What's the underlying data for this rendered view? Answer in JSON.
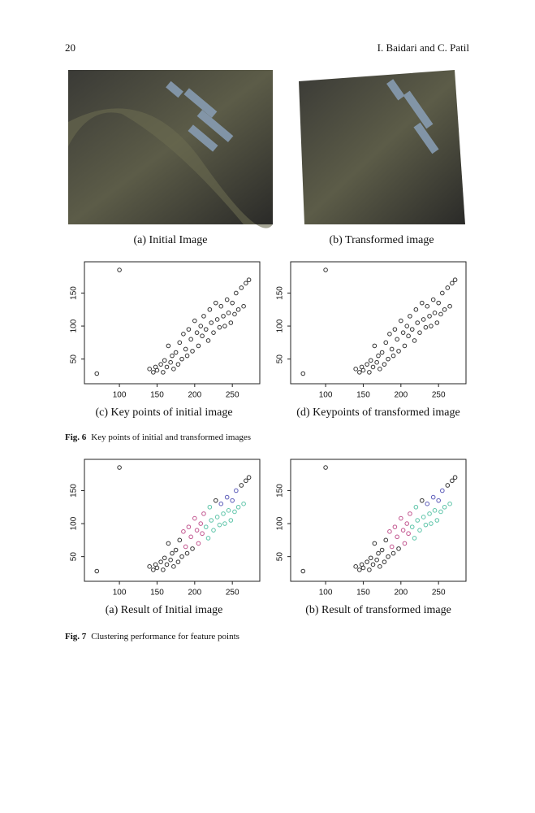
{
  "header": {
    "page_number": "20",
    "authors": "I. Baidari and C. Patil"
  },
  "figure6": {
    "images": [
      {
        "caption": "(a) Initial Image"
      },
      {
        "caption": "(b) Transformed image"
      }
    ],
    "label": "Fig. 6",
    "caption": "Key points of initial and transformed images"
  },
  "figure7": {
    "label": "Fig. 7",
    "caption": "Clustering performance for feature points"
  },
  "chart_data": [
    {
      "type": "scatter",
      "caption": "(c) Key points of initial image",
      "xlim": [
        60,
        280
      ],
      "ylim": [
        20,
        190
      ],
      "xticks": [
        100,
        150,
        200,
        250
      ],
      "yticks": [
        50,
        100,
        150
      ],
      "series": [
        {
          "color": "#333333",
          "x": [
            70,
            100,
            140,
            145,
            148,
            150,
            155,
            158,
            160,
            163,
            165,
            168,
            170,
            172,
            175,
            178,
            180,
            183,
            185,
            188,
            190,
            192,
            195,
            197,
            200,
            203,
            205,
            208,
            210,
            212,
            215,
            218,
            220,
            222,
            225,
            228,
            230,
            233,
            235,
            238,
            240,
            243,
            245,
            248,
            250,
            253,
            255,
            258,
            262,
            265,
            268,
            272
          ],
          "values": [
            28,
            185,
            35,
            30,
            38,
            33,
            42,
            30,
            48,
            38,
            70,
            45,
            55,
            35,
            60,
            42,
            75,
            50,
            88,
            65,
            55,
            95,
            80,
            62,
            108,
            90,
            70,
            100,
            85,
            115,
            95,
            78,
            125,
            105,
            90,
            135,
            110,
            98,
            130,
            115,
            100,
            140,
            120,
            105,
            135,
            118,
            150,
            125,
            158,
            130,
            165,
            170
          ]
        }
      ]
    },
    {
      "type": "scatter",
      "caption": "(d) Keypoints of transformed image",
      "xlim": [
        60,
        280
      ],
      "ylim": [
        20,
        190
      ],
      "xticks": [
        100,
        150,
        200,
        250
      ],
      "yticks": [
        50,
        100,
        150
      ],
      "series": [
        {
          "color": "#333333",
          "x": [
            70,
            100,
            140,
            145,
            148,
            150,
            155,
            158,
            160,
            163,
            165,
            168,
            170,
            172,
            175,
            178,
            180,
            183,
            185,
            188,
            190,
            192,
            195,
            197,
            200,
            203,
            205,
            208,
            210,
            212,
            215,
            218,
            220,
            222,
            225,
            228,
            230,
            233,
            235,
            238,
            240,
            243,
            245,
            248,
            250,
            253,
            255,
            258,
            262,
            265,
            268,
            272
          ],
          "values": [
            28,
            185,
            35,
            30,
            38,
            33,
            42,
            30,
            48,
            38,
            70,
            45,
            55,
            35,
            60,
            42,
            75,
            50,
            88,
            65,
            55,
            95,
            80,
            62,
            108,
            90,
            70,
            100,
            85,
            115,
            95,
            78,
            125,
            105,
            90,
            135,
            110,
            98,
            130,
            115,
            100,
            140,
            120,
            105,
            135,
            118,
            150,
            125,
            158,
            130,
            165,
            170
          ]
        }
      ]
    },
    {
      "type": "scatter",
      "caption": "(a) Result of Initial image",
      "xlim": [
        60,
        280
      ],
      "ylim": [
        20,
        190
      ],
      "xticks": [
        100,
        150,
        200,
        250
      ],
      "yticks": [
        50,
        100,
        150
      ],
      "series": [
        {
          "color": "#333333",
          "x": [
            70,
            100,
            140,
            145,
            148,
            150,
            155,
            158,
            160,
            163,
            165,
            168,
            170,
            172,
            175,
            178,
            180,
            183,
            190,
            197,
            228,
            262,
            268,
            272
          ],
          "values": [
            28,
            185,
            35,
            30,
            38,
            33,
            42,
            30,
            48,
            38,
            70,
            45,
            55,
            35,
            60,
            42,
            75,
            50,
            55,
            62,
            135,
            158,
            165,
            170
          ]
        },
        {
          "color": "#c2558f",
          "x": [
            185,
            188,
            192,
            195,
            200,
            203,
            205,
            208,
            210,
            212
          ],
          "values": [
            88,
            65,
            95,
            80,
            108,
            90,
            70,
            100,
            85,
            115
          ]
        },
        {
          "color": "#5cc4a8",
          "x": [
            215,
            218,
            220,
            222,
            225,
            230,
            233,
            238,
            240,
            245,
            248,
            253,
            258,
            265
          ],
          "values": [
            95,
            78,
            125,
            105,
            90,
            110,
            98,
            115,
            100,
            120,
            105,
            118,
            125,
            130
          ]
        },
        {
          "color": "#5a5ab8",
          "x": [
            235,
            243,
            250,
            255
          ],
          "values": [
            130,
            140,
            135,
            150
          ]
        }
      ]
    },
    {
      "type": "scatter",
      "caption": "(b) Result of transformed image",
      "xlim": [
        60,
        280
      ],
      "ylim": [
        20,
        190
      ],
      "xticks": [
        100,
        150,
        200,
        250
      ],
      "yticks": [
        50,
        100,
        150
      ],
      "series": [
        {
          "color": "#333333",
          "x": [
            70,
            100,
            140,
            145,
            148,
            150,
            155,
            158,
            160,
            163,
            165,
            168,
            170,
            172,
            175,
            178,
            180,
            183,
            190,
            197,
            228,
            262,
            268,
            272
          ],
          "values": [
            28,
            185,
            35,
            30,
            38,
            33,
            42,
            30,
            48,
            38,
            70,
            45,
            55,
            35,
            60,
            42,
            75,
            50,
            55,
            62,
            135,
            158,
            165,
            170
          ]
        },
        {
          "color": "#c2558f",
          "x": [
            185,
            188,
            192,
            195,
            200,
            203,
            205,
            208,
            210,
            212
          ],
          "values": [
            88,
            65,
            95,
            80,
            108,
            90,
            70,
            100,
            85,
            115
          ]
        },
        {
          "color": "#5cc4a8",
          "x": [
            215,
            218,
            220,
            222,
            225,
            230,
            233,
            238,
            240,
            245,
            248,
            253,
            258,
            265
          ],
          "values": [
            95,
            78,
            125,
            105,
            90,
            110,
            98,
            115,
            100,
            120,
            105,
            118,
            125,
            130
          ]
        },
        {
          "color": "#5a5ab8",
          "x": [
            235,
            243,
            250,
            255
          ],
          "values": [
            130,
            140,
            135,
            150
          ]
        }
      ]
    }
  ]
}
